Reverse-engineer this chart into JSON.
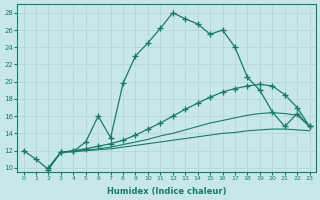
{
  "xlabel": "Humidex (Indice chaleur)",
  "bg_color": "#c8e8e8",
  "line_color": "#1a7a6a",
  "grid_color": "#b0d4d4",
  "xlim": [
    -0.5,
    23.5
  ],
  "ylim": [
    9.5,
    29.0
  ],
  "xticks": [
    0,
    1,
    2,
    3,
    4,
    5,
    6,
    7,
    8,
    9,
    10,
    11,
    12,
    13,
    14,
    15,
    16,
    17,
    18,
    19,
    20,
    21,
    22,
    23
  ],
  "yticks": [
    10,
    12,
    14,
    16,
    18,
    20,
    22,
    24,
    26,
    28
  ],
  "line1_x": [
    0,
    1,
    2,
    3,
    4,
    5,
    6,
    7,
    8,
    9,
    10,
    11,
    12,
    13,
    14,
    15,
    16,
    17,
    18,
    19,
    20,
    21,
    22,
    23
  ],
  "line1_y": [
    12.0,
    11.0,
    9.8,
    11.8,
    11.9,
    13.0,
    16.0,
    13.5,
    19.8,
    23.0,
    24.5,
    26.2,
    28.0,
    27.3,
    26.7,
    25.5,
    26.0,
    24.0,
    20.5,
    19.0,
    16.5,
    14.8,
    16.3,
    14.8
  ],
  "line2_x": [
    2,
    3,
    4,
    5,
    6,
    7,
    8,
    9,
    10,
    11,
    12,
    13,
    14,
    15,
    16,
    17,
    18,
    19,
    20,
    21,
    22,
    23
  ],
  "line2_y": [
    10.0,
    11.8,
    12.0,
    12.2,
    12.5,
    12.8,
    13.2,
    13.8,
    14.5,
    15.2,
    16.0,
    16.8,
    17.5,
    18.2,
    18.8,
    19.2,
    19.5,
    19.7,
    19.5,
    18.5,
    17.0,
    14.8
  ],
  "line3_x": [
    2,
    3,
    4,
    5,
    6,
    7,
    8,
    9,
    10,
    11,
    12,
    13,
    14,
    15,
    16,
    17,
    18,
    19,
    20,
    21,
    22,
    23
  ],
  "line3_y": [
    10.0,
    11.8,
    11.9,
    12.0,
    12.2,
    12.4,
    12.7,
    13.0,
    13.3,
    13.7,
    14.0,
    14.4,
    14.8,
    15.2,
    15.5,
    15.8,
    16.1,
    16.3,
    16.4,
    16.3,
    16.1,
    14.8
  ],
  "line4_x": [
    2,
    3,
    4,
    5,
    6,
    7,
    8,
    9,
    10,
    11,
    12,
    13,
    14,
    15,
    16,
    17,
    18,
    19,
    20,
    21,
    22,
    23
  ],
  "line4_y": [
    10.0,
    11.8,
    11.9,
    12.0,
    12.1,
    12.2,
    12.4,
    12.6,
    12.8,
    13.0,
    13.2,
    13.4,
    13.6,
    13.8,
    14.0,
    14.1,
    14.3,
    14.4,
    14.5,
    14.5,
    14.4,
    14.3
  ]
}
